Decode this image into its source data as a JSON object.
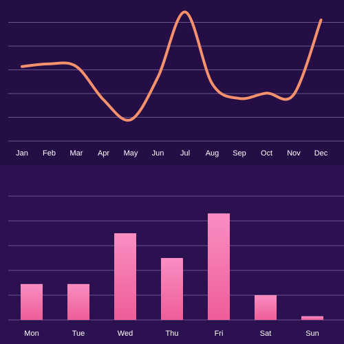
{
  "colors": {
    "background_top": "#250e45",
    "background_bottom": "#2c1150",
    "gridline": "#6a5592",
    "line": "#f5916d",
    "bar_top": "#f98ec2",
    "bar_bottom": "#ee5d9a",
    "label": "#ffffff"
  },
  "chart_data": [
    {
      "type": "line",
      "smooth": true,
      "categories": [
        "Jan",
        "Feb",
        "Mar",
        "Apr",
        "May",
        "Jun",
        "Jul",
        "Aug",
        "Sep",
        "Oct",
        "Nov",
        "Dec"
      ],
      "series": [
        {
          "values": [
            5.6,
            5.8,
            5.6,
            3.1,
            1.6,
            4.8,
            9.7,
            4.3,
            3.2,
            3.6,
            3.5,
            9.1
          ]
        }
      ],
      "ylim": [
        0,
        10.6
      ],
      "grid": true,
      "legend": "none"
    },
    {
      "type": "bar",
      "categories": [
        "Mon",
        "Tue",
        "Wed",
        "Thu",
        "Fri",
        "Sat",
        "Sun"
      ],
      "values": [
        2.9,
        2.9,
        7.0,
        5.0,
        8.6,
        2.0,
        0.3
      ],
      "ylim": [
        0,
        10
      ],
      "grid": true,
      "legend": "none"
    }
  ]
}
